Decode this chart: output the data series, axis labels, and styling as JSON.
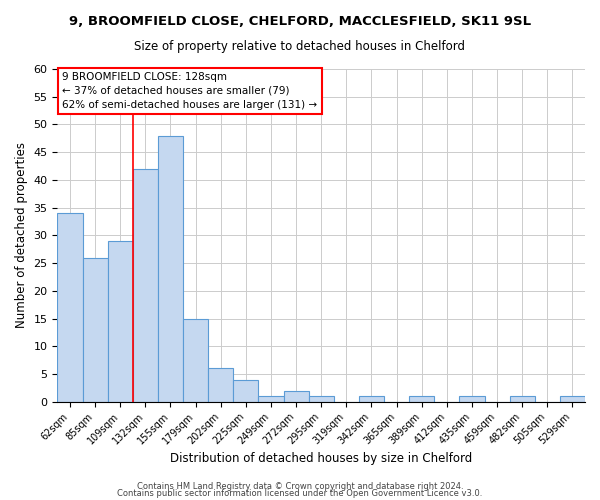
{
  "title1": "9, BROOMFIELD CLOSE, CHELFORD, MACCLESFIELD, SK11 9SL",
  "title2": "Size of property relative to detached houses in Chelford",
  "xlabel": "Distribution of detached houses by size in Chelford",
  "ylabel": "Number of detached properties",
  "bin_labels": [
    "62sqm",
    "85sqm",
    "109sqm",
    "132sqm",
    "155sqm",
    "179sqm",
    "202sqm",
    "225sqm",
    "249sqm",
    "272sqm",
    "295sqm",
    "319sqm",
    "342sqm",
    "365sqm",
    "389sqm",
    "412sqm",
    "435sqm",
    "459sqm",
    "482sqm",
    "505sqm",
    "529sqm"
  ],
  "bar_heights": [
    34,
    26,
    29,
    42,
    48,
    15,
    6,
    4,
    1,
    2,
    1,
    0,
    1,
    0,
    1,
    0,
    1,
    0,
    1,
    0,
    1
  ],
  "bar_color": "#c5d8f0",
  "bar_edge_color": "#5b9bd5",
  "red_line_bin_index": 3,
  "annotation_title": "9 BROOMFIELD CLOSE: 128sqm",
  "annotation_line1": "← 37% of detached houses are smaller (79)",
  "annotation_line2": "62% of semi-detached houses are larger (131) →",
  "ylim": [
    0,
    60
  ],
  "yticks": [
    0,
    5,
    10,
    15,
    20,
    25,
    30,
    35,
    40,
    45,
    50,
    55,
    60
  ],
  "footnote1": "Contains HM Land Registry data © Crown copyright and database right 2024.",
  "footnote2": "Contains public sector information licensed under the Open Government Licence v3.0.",
  "background_color": "#ffffff",
  "grid_color": "#cccccc"
}
